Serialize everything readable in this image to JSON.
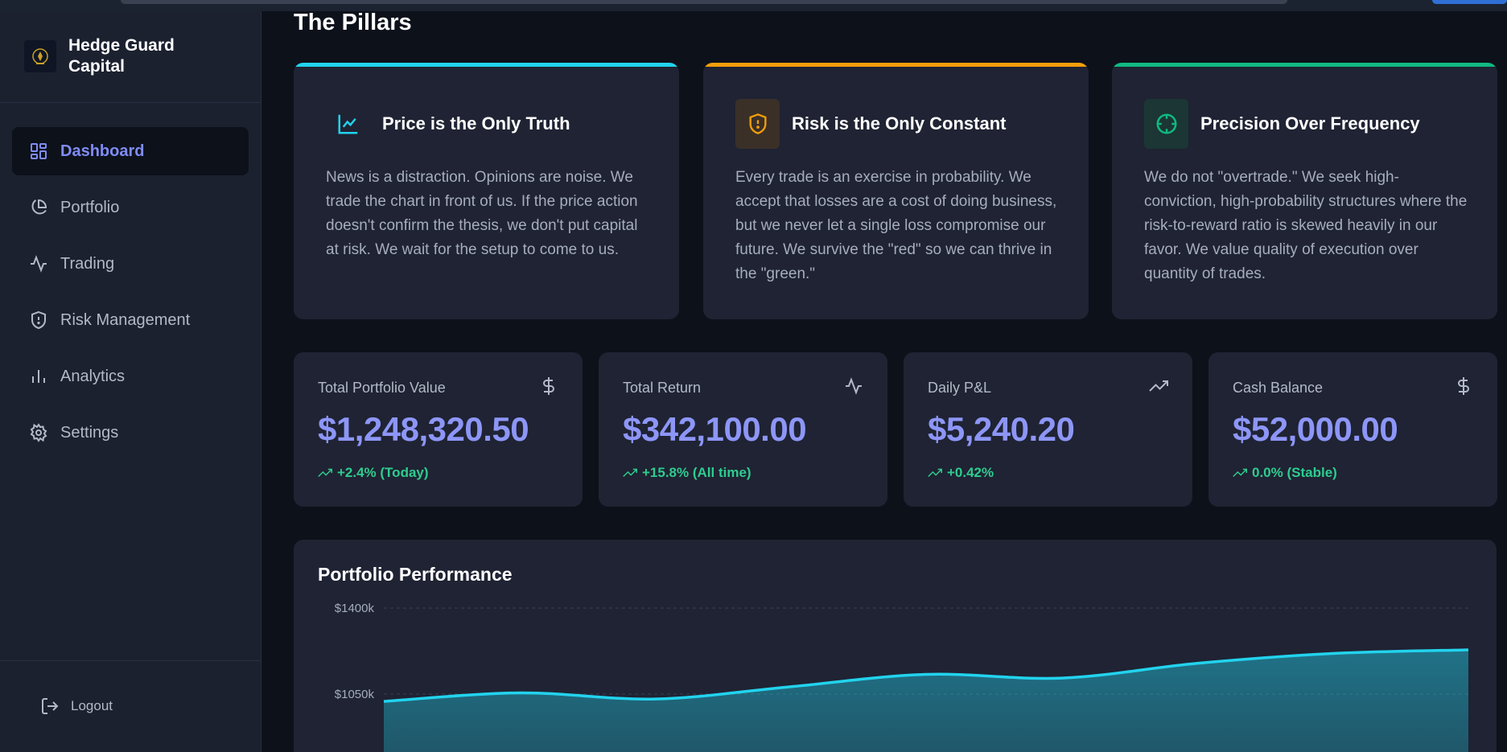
{
  "brand": {
    "name": "Hedge Guard Capital"
  },
  "nav": {
    "items": [
      {
        "label": "Dashboard",
        "icon": "dashboard-icon",
        "active": true
      },
      {
        "label": "Portfolio",
        "icon": "pie-chart-icon",
        "active": false
      },
      {
        "label": "Trading",
        "icon": "activity-icon",
        "active": false
      },
      {
        "label": "Risk Management",
        "icon": "shield-icon",
        "active": false
      },
      {
        "label": "Analytics",
        "icon": "bar-chart-icon",
        "active": false
      },
      {
        "label": "Settings",
        "icon": "gear-icon",
        "active": false
      }
    ],
    "logout_label": "Logout"
  },
  "pillars": {
    "title": "The Pillars",
    "items": [
      {
        "title": "Price is the Only Truth",
        "body": "News is a distraction. Opinions are noise. We trade the chart in front of us. If the price action doesn't confirm the thesis, we don't put capital at risk. We wait for the setup to come to us.",
        "accent": "#22d3ee",
        "icon": "line-chart-icon"
      },
      {
        "title": "Risk is the Only Constant",
        "body": "Every trade is an exercise in probability. We accept that losses are a cost of doing business, but we never let a single loss compromise our future. We survive the \"red\" so we can thrive in the \"green.\"",
        "accent": "#f59e0b",
        "icon": "shield-alert-icon"
      },
      {
        "title": "Precision Over Frequency",
        "body": "We do not \"overtrade.\" We seek high-conviction, high-probability structures where the risk-to-reward ratio is skewed heavily in our favor. We value quality of execution over quantity of trades.",
        "accent": "#10b981",
        "icon": "crosshair-icon"
      }
    ]
  },
  "stats": [
    {
      "label": "Total Portfolio Value",
      "value": "$1,248,320.50",
      "change": "+2.4% (Today)",
      "icon": "dollar-icon"
    },
    {
      "label": "Total Return",
      "value": "$342,100.00",
      "change": "+15.8% (All time)",
      "icon": "activity-icon"
    },
    {
      "label": "Daily P&L",
      "value": "$5,240.20",
      "change": "+0.42%",
      "icon": "trending-up-icon"
    },
    {
      "label": "Cash Balance",
      "value": "$52,000.00",
      "change": "0.0% (Stable)",
      "icon": "dollar-icon"
    }
  ],
  "colors": {
    "accent_primary": "#8d96f7",
    "positive": "#2ecc8f",
    "chart_line": "#22d3ee"
  },
  "performance": {
    "title": "Portfolio Performance"
  },
  "chart_data": {
    "type": "area",
    "title": "Portfolio Performance",
    "y_ticks": [
      "$1400k",
      "$1050k"
    ],
    "y_tick_values": [
      1400,
      1050
    ],
    "x": [
      0,
      1,
      2,
      3,
      4,
      5,
      6,
      7,
      8
    ],
    "values": [
      1020,
      1055,
      1030,
      1080,
      1130,
      1115,
      1175,
      1215,
      1230
    ],
    "ylim": [
      700,
      1400
    ],
    "grid": true
  }
}
